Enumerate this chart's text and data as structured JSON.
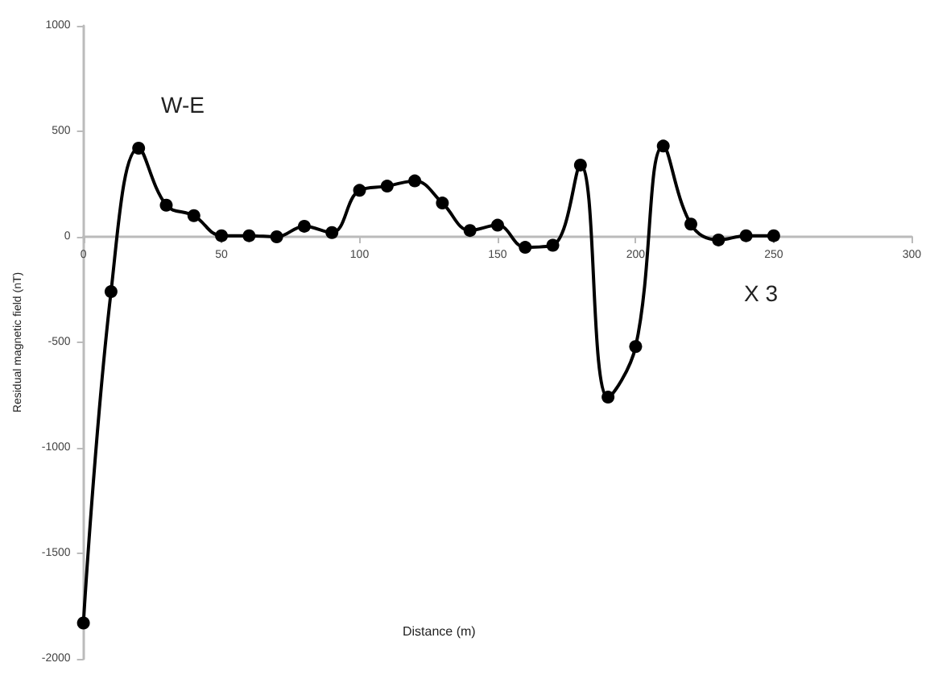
{
  "chart_data": {
    "type": "line",
    "xlabel": "Distance (m)",
    "ylabel": "Residual magnetic field (nT)",
    "annotations": [
      "W-E",
      "X 3"
    ],
    "x": [
      0,
      10,
      20,
      30,
      40,
      50,
      60,
      70,
      80,
      90,
      100,
      110,
      120,
      130,
      140,
      150,
      160,
      170,
      180,
      190,
      200,
      210,
      220,
      230,
      240,
      250
    ],
    "series": [
      {
        "color": "#000000",
        "values": [
          -1830,
          -260,
          420,
          150,
          100,
          5,
          5,
          0,
          50,
          20,
          220,
          240,
          265,
          160,
          30,
          55,
          -50,
          -40,
          340,
          -760,
          -520,
          430,
          60,
          -15,
          5,
          5
        ]
      }
    ],
    "xlim": [
      0,
      300
    ],
    "xticks": [
      0,
      50,
      100,
      150,
      200,
      250,
      300
    ],
    "ylim": [
      -2000,
      1000
    ],
    "yticks": [
      -2000,
      -1500,
      -1000,
      -500,
      0,
      500,
      1000
    ],
    "grid": false,
    "marker": "circle",
    "line_style": "solid"
  }
}
